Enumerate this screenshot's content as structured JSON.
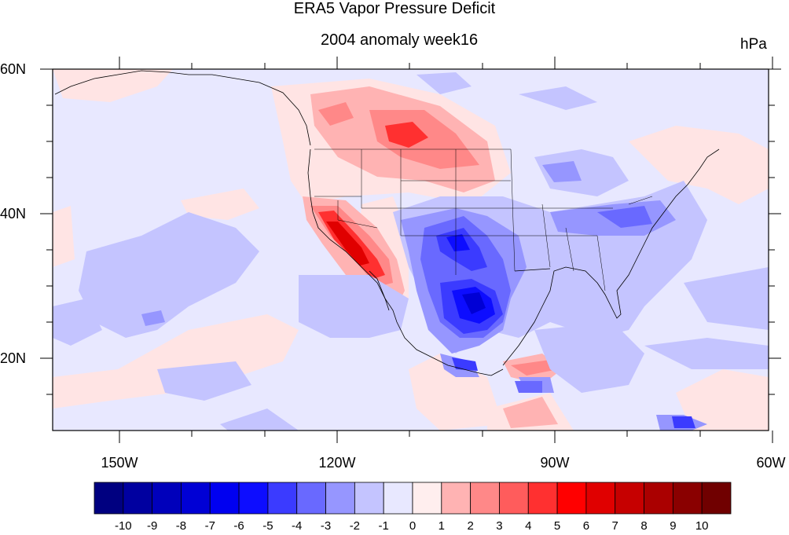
{
  "title": "ERA5 Vapor Pressure Deficit",
  "subtitle": "2004 anomaly week16",
  "units": "hPa",
  "lat_labels": [
    "60N",
    "40N",
    "20N"
  ],
  "lon_labels": [
    "150W",
    "120W",
    "90W",
    "60W"
  ],
  "colorbar": {
    "labels": [
      "-10",
      "-9",
      "-8",
      "-7",
      "-6",
      "-5",
      "-4",
      "-3",
      "-2",
      "-1",
      "0",
      "1",
      "2",
      "3",
      "4",
      "5",
      "6",
      "7",
      "8",
      "9",
      "10"
    ],
    "colors": [
      "#000080",
      "#0000a0",
      "#0000bb",
      "#0000d5",
      "#0000f0",
      "#0d0dff",
      "#3b3bff",
      "#6969ff",
      "#9696ff",
      "#c4c4ff",
      "#e8e8ff",
      "#ffeeee",
      "#ffb3b3",
      "#ff8888",
      "#ff5c5c",
      "#ff3030",
      "#ff0000",
      "#e00000",
      "#c60000",
      "#aa0000",
      "#8a0000",
      "#700000"
    ]
  },
  "map": {
    "lon_range": [
      -160,
      -60
    ],
    "lat_range": [
      10,
      60
    ],
    "background_color": "#e6e6fa"
  }
}
